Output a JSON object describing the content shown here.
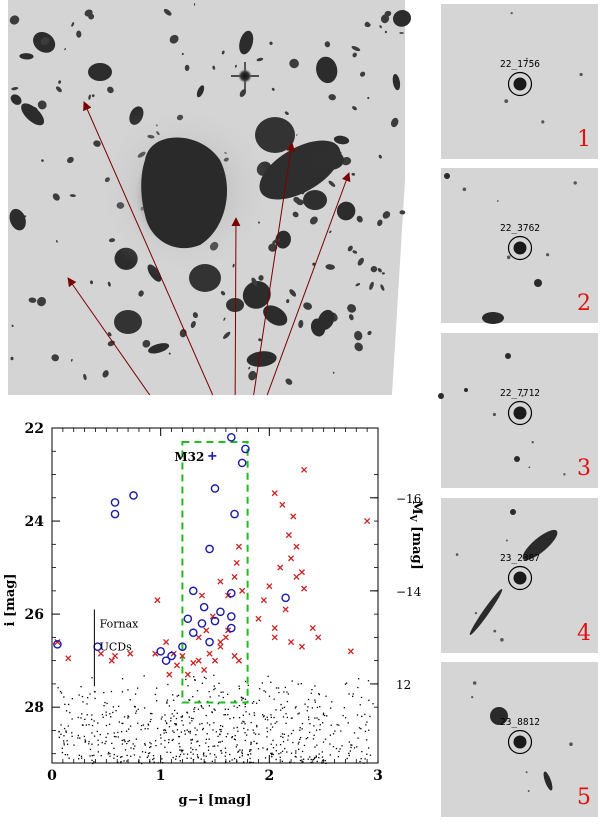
{
  "chart_data": {
    "type": "scatter",
    "xlabel": "g−i [mag]",
    "ylabel": "i [mag]",
    "right_axis_label": "M_V [mag]",
    "xlim": [
      0,
      3
    ],
    "ylim": [
      29.2,
      22
    ],
    "x_ticks": [
      "0",
      "1",
      "2",
      "3"
    ],
    "y_ticks": [
      "22",
      "24",
      "26",
      "28"
    ],
    "right_ticks": [
      {
        "label": "−16",
        "at_i": 23.5
      },
      {
        "label": "−14",
        "at_i": 25.5
      },
      {
        "label": "12",
        "at_i": 27.5
      }
    ],
    "annotations": [
      {
        "text": "M32",
        "g_i": 1.42,
        "i": 22.6
      },
      {
        "text": "Fornax",
        "g_i": 0.42,
        "i": 26.2
      },
      {
        "text": "UCDs",
        "g_i": 0.42,
        "i": 26.7
      }
    ],
    "selection_box": {
      "x": [
        1.2,
        1.8
      ],
      "y": [
        22.3,
        27.9
      ]
    },
    "colors": {
      "candidates": "#1a1aa8",
      "contaminants": "#cc2222",
      "box": "#22bb22",
      "m32": "#1a1aa8",
      "arrows": "#7a0000"
    },
    "series": [
      {
        "marker": "circle",
        "points": [
          [
            1.65,
            22.2
          ],
          [
            1.78,
            22.45
          ],
          [
            1.75,
            22.75
          ],
          [
            1.5,
            23.3
          ],
          [
            1.68,
            23.85
          ],
          [
            0.58,
            23.6
          ],
          [
            0.58,
            23.85
          ],
          [
            0.75,
            23.45
          ],
          [
            1.45,
            24.6
          ],
          [
            1.3,
            25.5
          ],
          [
            1.25,
            26.1
          ],
          [
            1.4,
            25.85
          ],
          [
            1.55,
            25.95
          ],
          [
            1.3,
            26.4
          ],
          [
            1.45,
            26.6
          ],
          [
            1.38,
            26.2
          ],
          [
            1.2,
            26.7
          ],
          [
            1.1,
            26.9
          ],
          [
            1.05,
            27.0
          ],
          [
            1.0,
            26.8
          ],
          [
            1.65,
            26.3
          ],
          [
            1.65,
            26.05
          ],
          [
            1.5,
            26.15
          ],
          [
            2.15,
            25.65
          ],
          [
            1.65,
            25.55
          ],
          [
            0.42,
            26.7
          ],
          [
            0.05,
            26.65
          ]
        ]
      },
      {
        "marker": "x",
        "points": [
          [
            2.32,
            22.9
          ],
          [
            2.05,
            23.4
          ],
          [
            2.12,
            23.65
          ],
          [
            2.22,
            23.9
          ],
          [
            2.18,
            24.3
          ],
          [
            2.25,
            24.55
          ],
          [
            2.2,
            24.8
          ],
          [
            2.1,
            25.0
          ],
          [
            2.25,
            25.2
          ],
          [
            2.0,
            25.4
          ],
          [
            1.95,
            25.7
          ],
          [
            2.15,
            25.9
          ],
          [
            2.05,
            26.3
          ],
          [
            1.9,
            26.1
          ],
          [
            2.3,
            25.1
          ],
          [
            2.32,
            25.45
          ],
          [
            2.4,
            26.3
          ],
          [
            2.45,
            26.5
          ],
          [
            2.75,
            26.8
          ],
          [
            2.3,
            26.7
          ],
          [
            2.2,
            26.6
          ],
          [
            2.05,
            26.5
          ],
          [
            2.9,
            24.0
          ],
          [
            1.72,
            24.55
          ],
          [
            1.7,
            24.9
          ],
          [
            1.68,
            25.2
          ],
          [
            1.75,
            25.5
          ],
          [
            1.62,
            25.6
          ],
          [
            1.55,
            25.3
          ],
          [
            1.38,
            25.6
          ],
          [
            1.48,
            26.05
          ],
          [
            1.6,
            26.5
          ],
          [
            1.55,
            26.7
          ],
          [
            1.68,
            26.9
          ],
          [
            1.72,
            27.0
          ],
          [
            1.5,
            27.0
          ],
          [
            1.45,
            26.85
          ],
          [
            1.35,
            27.0
          ],
          [
            1.25,
            27.3
          ],
          [
            1.3,
            27.05
          ],
          [
            1.4,
            27.2
          ],
          [
            1.15,
            27.1
          ],
          [
            1.08,
            27.3
          ],
          [
            1.12,
            26.85
          ],
          [
            0.95,
            26.85
          ],
          [
            1.05,
            26.6
          ],
          [
            1.35,
            26.5
          ],
          [
            1.2,
            26.9
          ],
          [
            0.72,
            26.85
          ],
          [
            0.58,
            26.9
          ],
          [
            0.55,
            27.0
          ],
          [
            0.45,
            26.85
          ],
          [
            0.15,
            26.95
          ],
          [
            0.05,
            26.6
          ],
          [
            0.97,
            25.7
          ],
          [
            1.62,
            26.35
          ],
          [
            1.42,
            26.35
          ],
          [
            1.55,
            26.6
          ]
        ]
      }
    ],
    "background_field": {
      "i_min": 27.3,
      "i_max": 29.2,
      "g_i_min": 0.05,
      "g_i_max": 2.95
    }
  },
  "panels": [
    {
      "id": "22_1756",
      "number": "1"
    },
    {
      "id": "22_3762",
      "number": "2"
    },
    {
      "id": "22_7712",
      "number": "3"
    },
    {
      "id": "23_2387",
      "number": "4"
    },
    {
      "id": "23_8812",
      "number": "5"
    }
  ]
}
